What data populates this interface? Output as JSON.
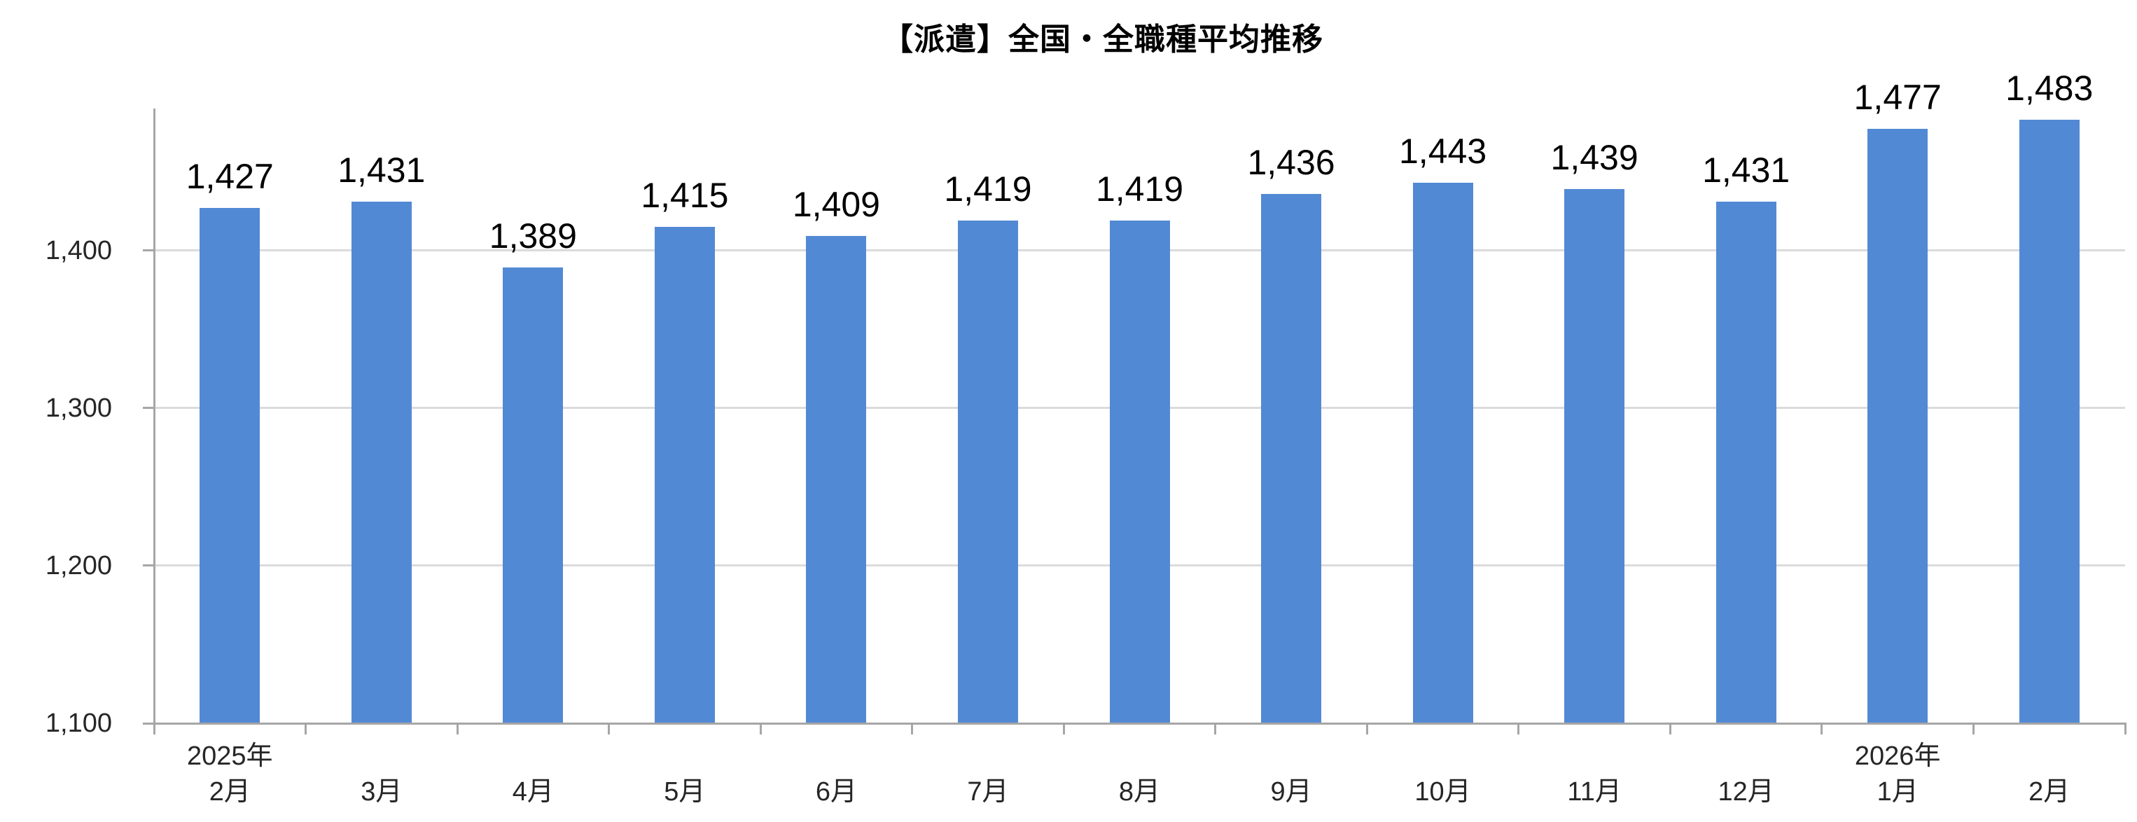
{
  "style": {
    "background": "#FFFFFF",
    "bar_color": "#5289D4",
    "axis_color": "#A6A6A6",
    "gridline_color": "#DBDBDB",
    "title_color": "#000000",
    "data_label_color": "#000000",
    "axis_text_color": "#262626"
  },
  "chart_data": {
    "type": "bar",
    "title": "【派遣】全国・全職種平均推移",
    "xlabel": "",
    "ylabel": "",
    "categories": [
      "2025年2月",
      "2025年3月",
      "2025年4月",
      "2025年5月",
      "2025年6月",
      "2025年7月",
      "2025年8月",
      "2025年9月",
      "2025年10月",
      "2025年11月",
      "2025年12月",
      "2026年1月",
      "2026年2月"
    ],
    "x_tick_labels": [
      {
        "year": "2025年",
        "month": "2月"
      },
      {
        "year": "",
        "month": "3月"
      },
      {
        "year": "",
        "month": "4月"
      },
      {
        "year": "",
        "month": "5月"
      },
      {
        "year": "",
        "month": "6月"
      },
      {
        "year": "",
        "month": "7月"
      },
      {
        "year": "",
        "month": "8月"
      },
      {
        "year": "",
        "month": "9月"
      },
      {
        "year": "",
        "month": "10月"
      },
      {
        "year": "",
        "month": "11月"
      },
      {
        "year": "",
        "month": "12月"
      },
      {
        "year": "2026年",
        "month": "1月"
      },
      {
        "year": "",
        "month": "2月"
      }
    ],
    "values": [
      1427,
      1431,
      1389,
      1415,
      1409,
      1419,
      1419,
      1436,
      1443,
      1439,
      1431,
      1477,
      1483
    ],
    "value_labels": [
      "1,427",
      "1,431",
      "1,389",
      "1,415",
      "1,409",
      "1,419",
      "1,419",
      "1,436",
      "1,443",
      "1,439",
      "1,431",
      "1,477",
      "1,483"
    ],
    "ylim": [
      1100,
      1490
    ],
    "y_ticks": [
      {
        "value": 1100,
        "label": "1,100"
      },
      {
        "value": 1200,
        "label": "1,200"
      },
      {
        "value": 1300,
        "label": "1,300"
      },
      {
        "value": 1400,
        "label": "1,400"
      }
    ],
    "gridline_values": [
      1200,
      1300,
      1400
    ],
    "grid": "horizontal-major",
    "legend": "none"
  }
}
